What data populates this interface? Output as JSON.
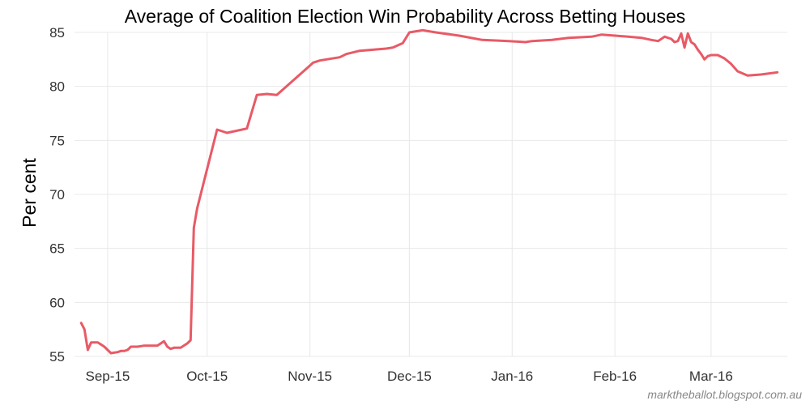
{
  "chart_data": {
    "type": "line",
    "title": "Average of Coalition Election Win Probability Across Betting Houses",
    "xlabel": "",
    "ylabel": "Per cent",
    "ylim": [
      55,
      85
    ],
    "xlim": [
      "2015-08-22",
      "2016-03-24"
    ],
    "yticks": [
      55,
      60,
      65,
      70,
      75,
      80,
      85
    ],
    "xticks": [
      {
        "date": "2015-09-01",
        "label": "Sep-15"
      },
      {
        "date": "2015-10-01",
        "label": "Oct-15"
      },
      {
        "date": "2015-11-01",
        "label": "Nov-15"
      },
      {
        "date": "2015-12-01",
        "label": "Dec-15"
      },
      {
        "date": "2016-01-01",
        "label": "Jan-16"
      },
      {
        "date": "2016-02-01",
        "label": "Feb-16"
      },
      {
        "date": "2016-03-01",
        "label": "Mar-16"
      }
    ],
    "grid": true,
    "color": "#e85a66",
    "series": [
      {
        "x": [
          "2015-08-24",
          "2015-08-25",
          "2015-08-26",
          "2015-08-27",
          "2015-08-28",
          "2015-08-29",
          "2015-08-31",
          "2015-09-02",
          "2015-09-04",
          "2015-09-05",
          "2015-09-06",
          "2015-09-07",
          "2015-09-08",
          "2015-09-10",
          "2015-09-12",
          "2015-09-16",
          "2015-09-18",
          "2015-09-19",
          "2015-09-20",
          "2015-09-21",
          "2015-09-23",
          "2015-09-25",
          "2015-09-26",
          "2015-09-27",
          "2015-09-28",
          "2015-10-04",
          "2015-10-07",
          "2015-10-13",
          "2015-10-16",
          "2015-10-19",
          "2015-10-22",
          "2015-11-02",
          "2015-11-04",
          "2015-11-10",
          "2015-11-12",
          "2015-11-16",
          "2015-11-24",
          "2015-11-26",
          "2015-11-29",
          "2015-12-01",
          "2015-12-05",
          "2015-12-09",
          "2015-12-16",
          "2015-12-23",
          "2015-12-31",
          "2016-01-05",
          "2016-01-07",
          "2016-01-13",
          "2016-01-18",
          "2016-01-25",
          "2016-01-28",
          "2016-02-01",
          "2016-02-05",
          "2016-02-09",
          "2016-02-12",
          "2016-02-14",
          "2016-02-16",
          "2016-02-18",
          "2016-02-19",
          "2016-02-20",
          "2016-02-21",
          "2016-02-22",
          "2016-02-23",
          "2016-02-24",
          "2016-02-25",
          "2016-02-26",
          "2016-02-27",
          "2016-02-28",
          "2016-02-29",
          "2016-03-01",
          "2016-03-03",
          "2016-03-05",
          "2016-03-07",
          "2016-03-09",
          "2016-03-12",
          "2016-03-16",
          "2016-03-21"
        ],
        "y": [
          58.1,
          57.5,
          55.6,
          56.3,
          56.3,
          56.3,
          55.9,
          55.3,
          55.4,
          55.5,
          55.5,
          55.6,
          55.9,
          55.9,
          56.0,
          56.0,
          56.4,
          55.9,
          55.7,
          55.8,
          55.8,
          56.2,
          56.5,
          66.9,
          68.7,
          76.0,
          75.7,
          76.1,
          79.2,
          79.3,
          79.2,
          82.2,
          82.4,
          82.7,
          83.0,
          83.3,
          83.5,
          83.6,
          84.0,
          85.0,
          85.2,
          85.0,
          84.7,
          84.3,
          84.2,
          84.1,
          84.2,
          84.3,
          84.5,
          84.6,
          84.8,
          84.7,
          84.6,
          84.5,
          84.3,
          84.2,
          84.6,
          84.4,
          84.1,
          84.2,
          84.9,
          83.6,
          84.9,
          84.1,
          83.9,
          83.4,
          83.0,
          82.5,
          82.8,
          82.9,
          82.9,
          82.6,
          82.1,
          81.4,
          81.0,
          81.1,
          81.3
        ]
      }
    ]
  },
  "credit": "marktheballot.blogspot.com.au"
}
